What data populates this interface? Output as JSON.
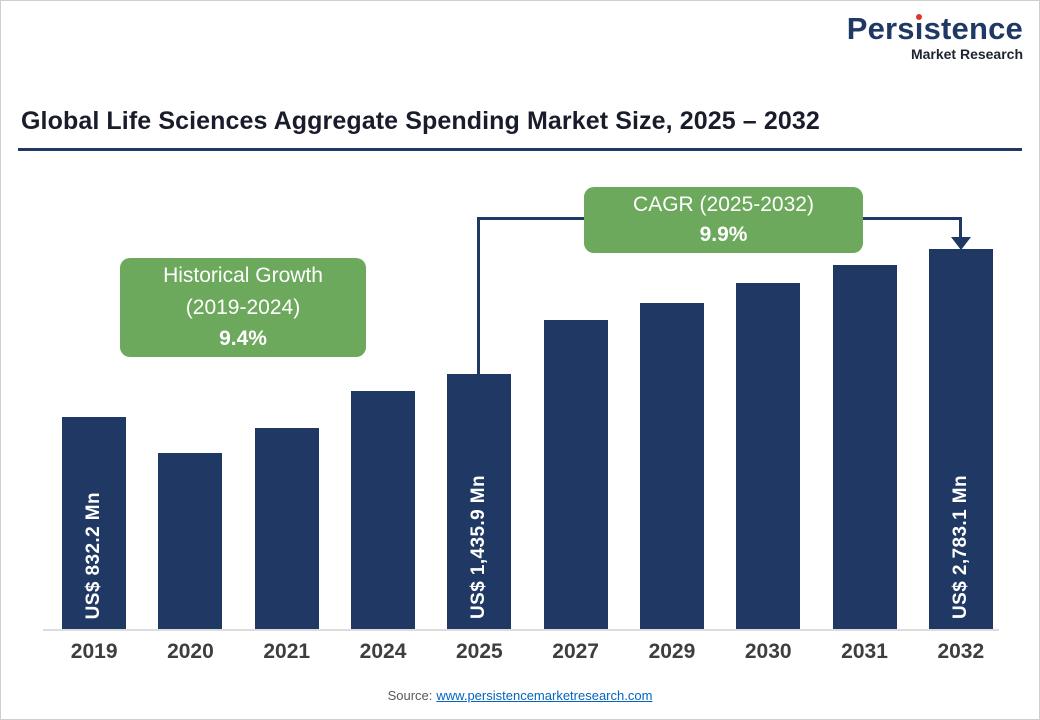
{
  "logo": {
    "brand_pre": "Pers",
    "brand_i": "ı",
    "brand_post": "stence",
    "brand_full": "Persistence",
    "tagline": "Market Research"
  },
  "title": "Global Life Sciences Aggregate Spending Market Size, 2025 – 2032",
  "annotations": {
    "historical": {
      "line1": "Historical Growth",
      "line2": "(2019-2024)",
      "value": "9.4%"
    },
    "cagr": {
      "line1": "CAGR (2025-2032)",
      "value": "9.9%"
    }
  },
  "source": {
    "label": "Source:",
    "link": "www.persistencemarketresearch.com"
  },
  "colors": {
    "bar": "#203864",
    "callout_green": "#6ca95c",
    "bracket_navy": "#203864",
    "link_blue": "#0563c1"
  },
  "chart_data": {
    "type": "bar",
    "title": "Global Life Sciences Aggregate Spending Market Size, 2025 – 2032",
    "value_unit": "US$ Mn",
    "categories": [
      "2019",
      "2020",
      "2021",
      "2024",
      "2025",
      "2027",
      "2029",
      "2030",
      "2031",
      "2032"
    ],
    "values": [
      832.2,
      null,
      null,
      null,
      1435.9,
      null,
      null,
      null,
      null,
      2783.1
    ],
    "bar_labels": [
      "US$ 832.2 Mn",
      "",
      "",
      "",
      "US$ 1,435.9 Mn",
      "",
      "",
      "",
      "",
      "US$ 2,783.1 Mn"
    ],
    "bar_heights_pct": [
      55.7,
      46.4,
      52.8,
      62.5,
      67.0,
      81.3,
      85.8,
      91.0,
      95.8,
      100
    ],
    "historical_growth_2019_2024": "9.4%",
    "cagr_2025_2032": "9.9%",
    "legend": "none",
    "grid": "off",
    "y_axis": "hidden"
  }
}
